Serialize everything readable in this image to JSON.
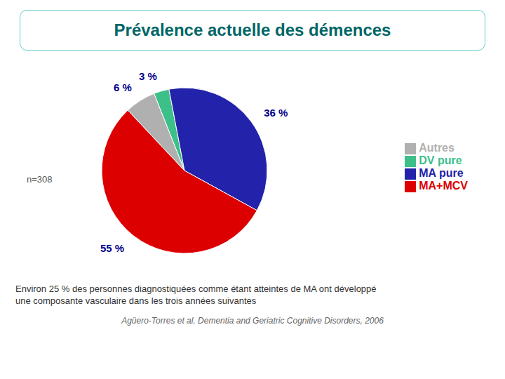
{
  "chart_data": {
    "type": "pie",
    "title": "Prévalence actuelle des démences",
    "categories": [
      "DV pure",
      "MA pure",
      "MA+MCV",
      "Autres"
    ],
    "values": [
      3,
      36,
      55,
      6
    ],
    "value_labels": [
      "3 %",
      "36 %",
      "55 %",
      "6 %"
    ],
    "colors": [
      "#3dbf8a",
      "#2222aa",
      "#dd0000",
      "#b0b0b0"
    ],
    "data_labels": true,
    "legend": "right",
    "annotations": [
      "n=308",
      "Environ 25 % des personnes diagnostiquées comme étant atteintes de MA ont développé",
      "une composante vasculaire dans les trois années suivantes",
      "Agüero-Torres et al. Dementia and Geriatric Cognitive Disorders, 2006"
    ]
  }
}
